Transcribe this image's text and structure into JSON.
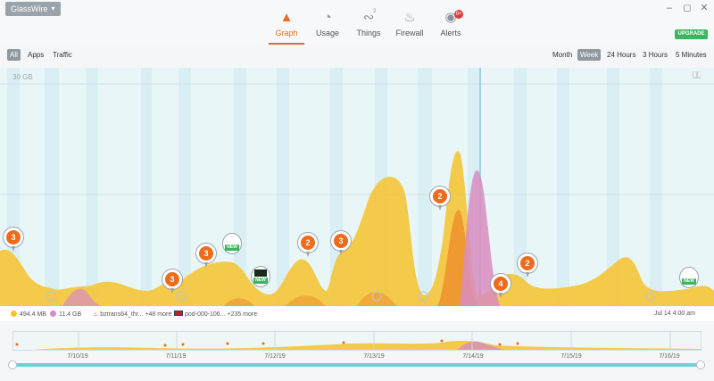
{
  "window": {
    "app_switch_label": "GlassWire",
    "minimize_icon": "minimize-icon",
    "maximize_icon": "maximize-icon",
    "close_icon": "close-icon"
  },
  "tabs": [
    {
      "label": "Graph",
      "icon": "graph-icon",
      "active": true
    },
    {
      "label": "Usage",
      "icon": "pie-icon"
    },
    {
      "label": "Things",
      "icon": "network-icon",
      "sup": "2"
    },
    {
      "label": "Firewall",
      "icon": "flame-icon"
    },
    {
      "label": "Alerts",
      "icon": "alert-icon",
      "badge": "9+"
    }
  ],
  "upgrade_label": "UPGRADE",
  "filters": {
    "view": [
      "All",
      "Apps",
      "Traffic"
    ],
    "selected_view": "All",
    "range": [
      "Month",
      "Week",
      "24 Hours",
      "3 Hours",
      "5 Minutes"
    ],
    "selected_range": "Week"
  },
  "graph": {
    "ylabel": "30 GB",
    "markers": [
      {
        "count": "3"
      },
      {
        "count": "3"
      },
      {
        "count": "3"
      },
      {
        "count": "2"
      },
      {
        "count": "3"
      },
      {
        "count": "2"
      },
      {
        "count": "4"
      },
      {
        "count": "2"
      }
    ],
    "new_label": "NEW"
  },
  "legend": {
    "incoming": "494.4 MB",
    "outgoing": "11.4 GB",
    "top_app": "bztrans64_thr...",
    "top_app_more": "+48 more",
    "top_host": "pod-000-106...",
    "top_host_more": "+235 more",
    "timestamp": "Jul 14 4:00 am"
  },
  "timeline": {
    "labels": [
      "7/10/19",
      "7/11/19",
      "7/12/19",
      "7/13/19",
      "7/14/19",
      "7/15/19",
      "7/16/19"
    ]
  },
  "colors": {
    "accent": "#ee6b1c",
    "incoming": "#f6c22c",
    "outgoing": "#d88cc0",
    "upgrade": "#3cb560"
  }
}
